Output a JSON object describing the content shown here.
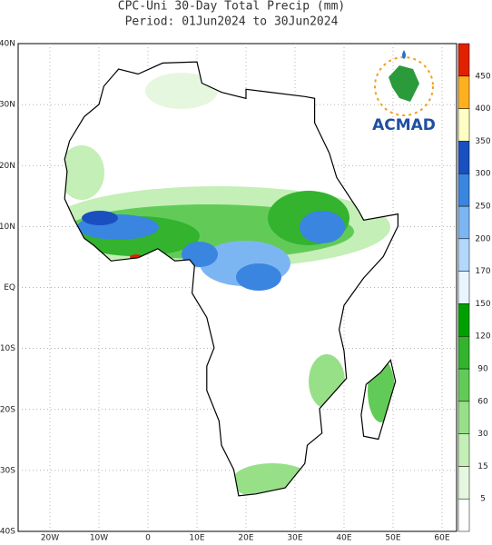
{
  "header": {
    "title": "CPC-Uni 30-Day Total Precip (mm)",
    "period": "Period: 01Jun2024 to 30Jun2024"
  },
  "map": {
    "lat_labels": [
      "40N",
      "30N",
      "20N",
      "10N",
      "EQ",
      "10S",
      "20S",
      "30S",
      "40S"
    ],
    "lon_labels": [
      "20W",
      "10W",
      "0",
      "10E",
      "20E",
      "30E",
      "40E",
      "50E",
      "60E"
    ]
  },
  "colorbar": {
    "levels": [
      5,
      15,
      30,
      60,
      90,
      120,
      150,
      170,
      200,
      250,
      300,
      350,
      400,
      450
    ],
    "colors": [
      "#ffffff",
      "#e6f7df",
      "#c4efb6",
      "#97e088",
      "#62cb58",
      "#34b32e",
      "#00a000",
      "#e8f4ff",
      "#b4d8fb",
      "#7cb6f2",
      "#3a85e0",
      "#1a4fc0",
      "#ffffc4",
      "#ffb020",
      "#e02000"
    ]
  },
  "logo": {
    "text": "ACMAD"
  }
}
